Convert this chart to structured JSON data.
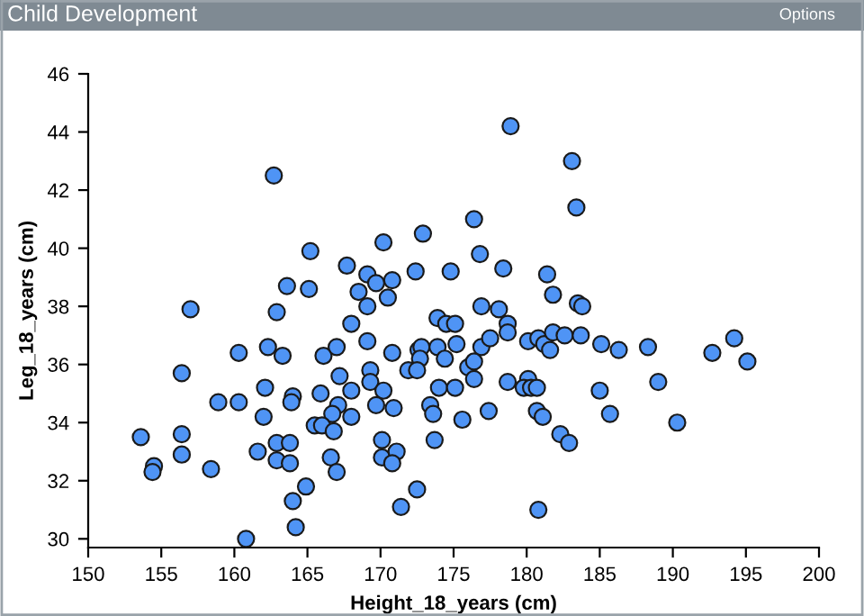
{
  "chart_data": {
    "type": "scatter",
    "title": "Child Development",
    "xlabel": "Height_18_years (cm)",
    "ylabel": "Leg_18_years (cm)",
    "annotations": [
      "Options"
    ],
    "xlim": [
      150,
      200
    ],
    "ylim": [
      29.7,
      46
    ],
    "xticks": [
      150,
      155,
      160,
      165,
      170,
      175,
      180,
      185,
      190,
      195,
      200
    ],
    "yticks": [
      30,
      32,
      34,
      36,
      38,
      40,
      42,
      44,
      46
    ],
    "grid": false,
    "marker": "circle",
    "series": [
      {
        "color": "#4f94f5",
        "x": [
          162.7,
          165.2,
          170.2,
          172.9,
          167.7,
          169.1,
          169.7,
          170.8,
          172.4,
          174.8,
          163.6,
          165.1,
          168.5,
          170.5,
          169.1,
          157.0,
          162.9,
          168.0,
          173.9,
          174.5,
          178.9,
          183.1,
          183.4,
          176.4,
          176.8,
          178.4,
          181.4,
          181.8,
          176.9,
          178.1,
          183.5,
          183.8,
          175.1,
          178.7,
          160.3,
          162.3,
          163.3,
          166.1,
          167.0,
          169.1,
          170.8,
          172.6,
          172.8,
          172.7,
          173.9,
          174.4,
          156.4,
          167.2,
          169.3,
          169.3,
          170.2,
          171.9,
          172.5,
          174.0,
          162.1,
          164.0,
          163.9,
          165.9,
          168.0,
          167.1,
          166.7,
          169.7,
          170.9,
          173.4,
          173.6,
          158.9,
          160.3,
          162.0,
          165.5,
          166.0,
          168.0,
          166.8,
          153.6,
          156.4,
          156.4,
          154.5,
          154.4,
          158.4,
          161.6,
          162.9,
          163.8,
          162.9,
          163.8,
          170.1,
          170.1,
          171.1,
          170.8,
          173.7,
          166.6,
          167.0,
          164.9,
          164.0,
          164.2,
          160.8,
          171.4,
          172.5,
          178.7,
          175.2,
          176.9,
          177.5,
          180.1,
          180.8,
          181.2,
          181.6,
          181.8,
          182.6,
          183.7,
          185.1,
          186.3,
          188.3,
          192.7,
          194.2,
          195.1,
          176.0,
          176.4,
          176.4,
          175.1,
          178.7,
          180.1,
          179.8,
          180.3,
          180.7,
          185.0,
          189.0,
          175.6,
          177.4,
          180.7,
          181.1,
          185.7,
          190.3,
          182.3,
          182.9,
          180.8
        ],
        "values": [
          42.5,
          39.9,
          40.2,
          40.5,
          39.4,
          39.1,
          38.8,
          38.9,
          39.2,
          39.2,
          38.7,
          38.6,
          38.5,
          38.3,
          38.0,
          37.9,
          37.8,
          37.4,
          37.6,
          37.4,
          44.2,
          43.0,
          41.4,
          41.0,
          39.8,
          39.3,
          39.1,
          38.4,
          38.0,
          37.9,
          38.1,
          38.0,
          37.4,
          37.4,
          36.4,
          36.6,
          36.3,
          36.3,
          36.6,
          36.8,
          36.4,
          36.5,
          36.6,
          36.2,
          36.6,
          36.2,
          35.7,
          35.6,
          35.8,
          35.4,
          35.1,
          35.8,
          35.8,
          35.2,
          35.2,
          34.9,
          34.7,
          35.0,
          35.1,
          34.6,
          34.3,
          34.6,
          34.5,
          34.6,
          34.3,
          34.7,
          34.7,
          34.2,
          33.9,
          33.9,
          34.2,
          33.7,
          33.5,
          33.6,
          32.9,
          32.5,
          32.3,
          32.4,
          33.0,
          33.3,
          33.3,
          32.7,
          32.6,
          33.4,
          32.8,
          33.0,
          32.6,
          33.4,
          32.8,
          32.3,
          31.8,
          31.3,
          30.4,
          30.0,
          31.1,
          31.7,
          37.1,
          36.7,
          36.6,
          36.9,
          36.8,
          36.9,
          36.7,
          36.5,
          37.1,
          37.0,
          37.0,
          36.7,
          36.5,
          36.6,
          36.4,
          36.9,
          36.1,
          35.9,
          36.1,
          35.5,
          35.2,
          35.4,
          35.5,
          35.2,
          35.2,
          35.2,
          35.1,
          35.4,
          34.1,
          34.4,
          34.4,
          34.2,
          34.3,
          34.0,
          33.6,
          33.3,
          31.0
        ]
      }
    ]
  }
}
